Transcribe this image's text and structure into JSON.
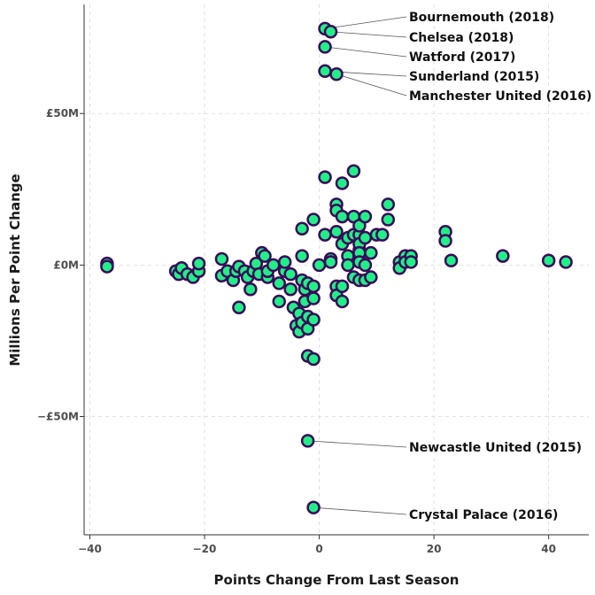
{
  "chart_data": {
    "type": "scatter",
    "title": "",
    "xlabel": "Points Change From Last Season",
    "ylabel": "Millions Per Point Change",
    "xlim": [
      -41,
      47
    ],
    "ylim": [
      -89,
      86
    ],
    "x_ticks": [
      -40,
      -20,
      0,
      20,
      40
    ],
    "x_tick_labels": [
      "−40",
      "−20",
      "0",
      "20",
      "40"
    ],
    "y_ticks": [
      -50,
      0,
      50
    ],
    "y_tick_labels": [
      "−£50M",
      "£0M",
      "£50M"
    ],
    "grid": true,
    "marker_fill": "#22ee88",
    "marker_stroke": "#3a0a5a",
    "points": [
      [
        -37,
        0.5
      ],
      [
        -37,
        -0.5
      ],
      [
        -25,
        -2
      ],
      [
        -24.5,
        -3
      ],
      [
        -24,
        -1
      ],
      [
        -23,
        -3
      ],
      [
        -22,
        -4
      ],
      [
        -21,
        -2
      ],
      [
        -21,
        0.5
      ],
      [
        -17,
        -3.5
      ],
      [
        -17,
        2
      ],
      [
        -16,
        -2
      ],
      [
        -15,
        -5
      ],
      [
        -14.5,
        -2
      ],
      [
        -14,
        -0.5
      ],
      [
        -14,
        -14
      ],
      [
        -13,
        -2
      ],
      [
        -12.5,
        -4
      ],
      [
        -12,
        -8
      ],
      [
        -11.5,
        -2
      ],
      [
        -11,
        0.5
      ],
      [
        -10.5,
        -3
      ],
      [
        -10,
        4
      ],
      [
        -9.5,
        3
      ],
      [
        -9,
        -4
      ],
      [
        -9,
        -2
      ],
      [
        -8,
        0
      ],
      [
        -7,
        -6
      ],
      [
        -7,
        -12
      ],
      [
        -6,
        -2
      ],
      [
        -6,
        1
      ],
      [
        -5,
        -3
      ],
      [
        -5,
        -8
      ],
      [
        -4.5,
        -14
      ],
      [
        -4,
        -20
      ],
      [
        -3.5,
        -22
      ],
      [
        -3.5,
        -16
      ],
      [
        -3,
        -19
      ],
      [
        -3,
        -5
      ],
      [
        -2.5,
        -8
      ],
      [
        -2.5,
        -12
      ],
      [
        -2,
        -6
      ],
      [
        -2,
        -17
      ],
      [
        -2,
        -21
      ],
      [
        -2,
        -30
      ],
      [
        -1,
        -31
      ],
      [
        -1,
        -18
      ],
      [
        -1,
        -11
      ],
      [
        -1,
        -7
      ],
      [
        -3,
        12
      ],
      [
        -3,
        3
      ],
      [
        -1,
        15
      ],
      [
        0,
        0
      ],
      [
        1,
        29
      ],
      [
        1,
        10
      ],
      [
        2,
        2
      ],
      [
        2,
        1
      ],
      [
        3,
        20
      ],
      [
        3,
        18
      ],
      [
        3,
        11
      ],
      [
        3,
        -7
      ],
      [
        3,
        -10
      ],
      [
        4,
        27
      ],
      [
        4,
        16
      ],
      [
        4,
        7
      ],
      [
        4,
        -12
      ],
      [
        4,
        -7
      ],
      [
        5,
        9
      ],
      [
        5,
        3
      ],
      [
        5,
        0
      ],
      [
        6,
        31
      ],
      [
        6,
        16
      ],
      [
        6,
        10
      ],
      [
        6,
        -4
      ],
      [
        7,
        5
      ],
      [
        7,
        2
      ],
      [
        7,
        10
      ],
      [
        7,
        13
      ],
      [
        7,
        7
      ],
      [
        7,
        4
      ],
      [
        7,
        1
      ],
      [
        7,
        -5
      ],
      [
        8,
        16
      ],
      [
        8,
        9
      ],
      [
        8,
        0
      ],
      [
        8,
        -5
      ],
      [
        9,
        4
      ],
      [
        9,
        -4
      ],
      [
        10,
        10
      ],
      [
        11,
        10
      ],
      [
        12,
        20
      ],
      [
        12,
        15
      ],
      [
        14,
        1
      ],
      [
        14,
        -1
      ],
      [
        15,
        3
      ],
      [
        15,
        1
      ],
      [
        16,
        3
      ],
      [
        16,
        1
      ],
      [
        22,
        11
      ],
      [
        22,
        8
      ],
      [
        23,
        1.5
      ],
      [
        32,
        3
      ],
      [
        40,
        1.5
      ],
      [
        43,
        1
      ]
    ],
    "annotated_points": [
      {
        "label": "Bournemouth (2018)",
        "x": 1,
        "y": 78
      },
      {
        "label": "Chelsea (2018)",
        "x": 2,
        "y": 77
      },
      {
        "label": "Watford (2017)",
        "x": 1,
        "y": 72
      },
      {
        "label": "Sunderland (2015)",
        "x": 1,
        "y": 64
      },
      {
        "label": "Manchester United (2016)",
        "x": 3,
        "y": 63
      },
      {
        "label": "Newcastle United (2015)",
        "x": -2,
        "y": -58
      },
      {
        "label": "Crystal Palace (2016)",
        "x": -1,
        "y": -80
      }
    ]
  }
}
